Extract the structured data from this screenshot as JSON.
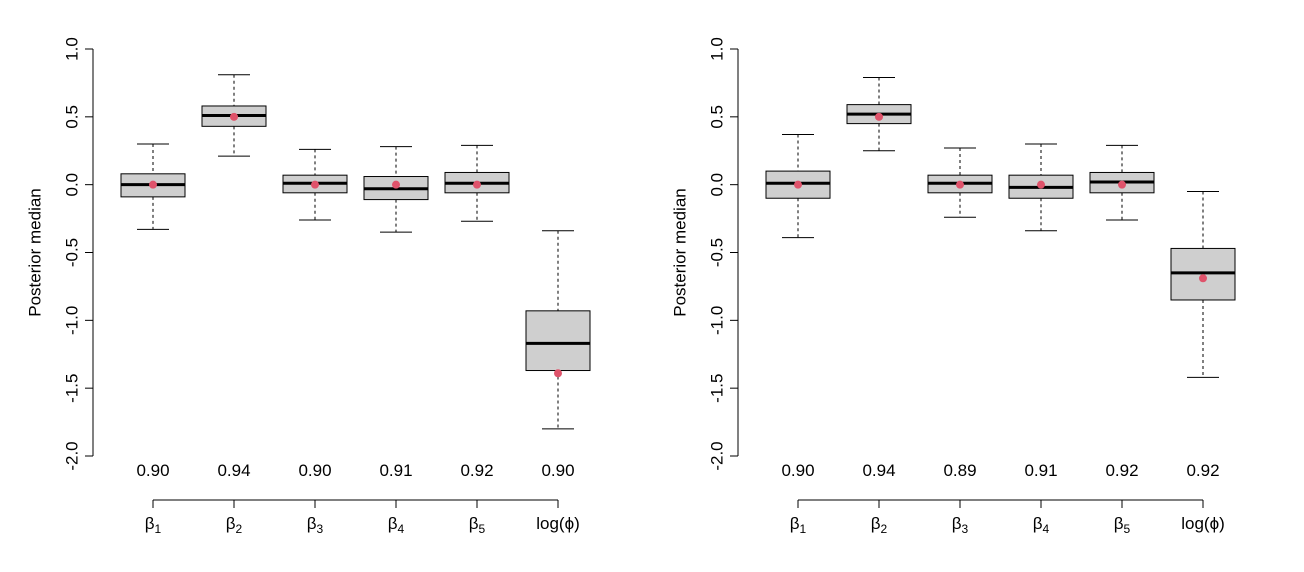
{
  "chart_data": [
    {
      "type": "boxplot",
      "ylabel": "Posterior median",
      "ylim": [
        -2.0,
        1.0
      ],
      "yticks": [
        "-2.0",
        "-1.5",
        "-1.0",
        "-0.5",
        "0.0",
        "0.5",
        "1.0"
      ],
      "yticks_values": [
        -2.0,
        -1.5,
        -1.0,
        -0.5,
        0.0,
        0.5,
        1.0
      ],
      "categories": [
        {
          "base": "β",
          "sub": "1"
        },
        {
          "base": "β",
          "sub": "2"
        },
        {
          "base": "β",
          "sub": "3"
        },
        {
          "base": "β",
          "sub": "4"
        },
        {
          "base": "β",
          "sub": "5"
        },
        {
          "base": "log(ϕ)",
          "sub": ""
        }
      ],
      "coverage": [
        "0.90",
        "0.94",
        "0.90",
        "0.91",
        "0.92",
        "0.90"
      ],
      "boxes": [
        {
          "whisker_low": -0.33,
          "q1": -0.09,
          "median": 0.0,
          "q3": 0.08,
          "whisker_high": 0.3,
          "true_value": 0.0
        },
        {
          "whisker_low": 0.21,
          "q1": 0.43,
          "median": 0.51,
          "q3": 0.58,
          "whisker_high": 0.81,
          "true_value": 0.5
        },
        {
          "whisker_low": -0.26,
          "q1": -0.06,
          "median": 0.01,
          "q3": 0.07,
          "whisker_high": 0.26,
          "true_value": 0.0
        },
        {
          "whisker_low": -0.35,
          "q1": -0.11,
          "median": -0.03,
          "q3": 0.06,
          "whisker_high": 0.28,
          "true_value": 0.0
        },
        {
          "whisker_low": -0.27,
          "q1": -0.06,
          "median": 0.01,
          "q3": 0.09,
          "whisker_high": 0.29,
          "true_value": 0.0
        },
        {
          "whisker_low": -1.8,
          "q1": -1.37,
          "median": -1.17,
          "q3": -0.93,
          "whisker_high": -0.34,
          "true_value": -1.39
        }
      ],
      "point_color": "#df536b",
      "box_color": "#cfcfcf"
    },
    {
      "type": "boxplot",
      "ylabel": "Posterior median",
      "ylim": [
        -2.0,
        1.0
      ],
      "yticks": [
        "-2.0",
        "-1.5",
        "-1.0",
        "-0.5",
        "0.0",
        "0.5",
        "1.0"
      ],
      "yticks_values": [
        -2.0,
        -1.5,
        -1.0,
        -0.5,
        0.0,
        0.5,
        1.0
      ],
      "categories": [
        {
          "base": "β",
          "sub": "1"
        },
        {
          "base": "β",
          "sub": "2"
        },
        {
          "base": "β",
          "sub": "3"
        },
        {
          "base": "β",
          "sub": "4"
        },
        {
          "base": "β",
          "sub": "5"
        },
        {
          "base": "log(ϕ)",
          "sub": ""
        }
      ],
      "coverage": [
        "0.90",
        "0.94",
        "0.89",
        "0.91",
        "0.92",
        "0.92"
      ],
      "boxes": [
        {
          "whisker_low": -0.39,
          "q1": -0.1,
          "median": 0.01,
          "q3": 0.1,
          "whisker_high": 0.37,
          "true_value": 0.0
        },
        {
          "whisker_low": 0.25,
          "q1": 0.45,
          "median": 0.52,
          "q3": 0.59,
          "whisker_high": 0.79,
          "true_value": 0.5
        },
        {
          "whisker_low": -0.24,
          "q1": -0.06,
          "median": 0.01,
          "q3": 0.07,
          "whisker_high": 0.27,
          "true_value": 0.0
        },
        {
          "whisker_low": -0.34,
          "q1": -0.1,
          "median": -0.02,
          "q3": 0.07,
          "whisker_high": 0.3,
          "true_value": 0.0
        },
        {
          "whisker_low": -0.26,
          "q1": -0.06,
          "median": 0.02,
          "q3": 0.09,
          "whisker_high": 0.29,
          "true_value": 0.0
        },
        {
          "whisker_low": -1.42,
          "q1": -0.85,
          "median": -0.65,
          "q3": -0.47,
          "whisker_high": -0.05,
          "true_value": -0.69
        }
      ],
      "point_color": "#df536b",
      "box_color": "#cfcfcf"
    }
  ]
}
